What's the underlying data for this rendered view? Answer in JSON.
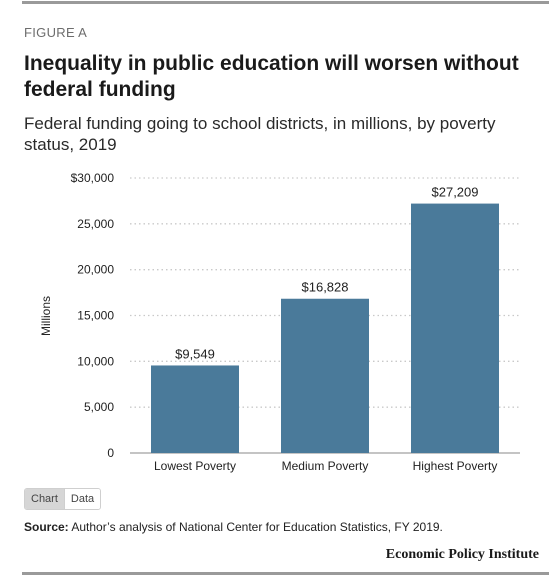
{
  "header": {
    "figure_label": "FIGURE A",
    "title": "Inequality in public education will worsen without federal funding",
    "subtitle": "Federal funding going to school districts, in millions, by poverty status, 2019"
  },
  "chart_data": {
    "type": "bar",
    "categories": [
      "Lowest Poverty",
      "Medium Poverty",
      "Highest Poverty"
    ],
    "values": [
      9549,
      16828,
      27209
    ],
    "value_labels": [
      "$9,549",
      "$16,828",
      "$27,209"
    ],
    "ylabel": "Millions",
    "ylim": [
      0,
      30000
    ],
    "yticks": [
      0,
      5000,
      10000,
      15000,
      20000,
      25000,
      30000
    ],
    "ytick_labels": [
      "0",
      "5,000",
      "10,000",
      "15,000",
      "20,000",
      "25,000",
      "$30,000"
    ],
    "grid": true,
    "bar_color": "#4a7a9a"
  },
  "toggle": {
    "chart_label": "Chart",
    "data_label": "Data"
  },
  "footer": {
    "source_label": "Source:",
    "source_text": " Author’s analysis of National Center for Education Statistics, FY 2019.",
    "brand": "Economic Policy Institute"
  }
}
